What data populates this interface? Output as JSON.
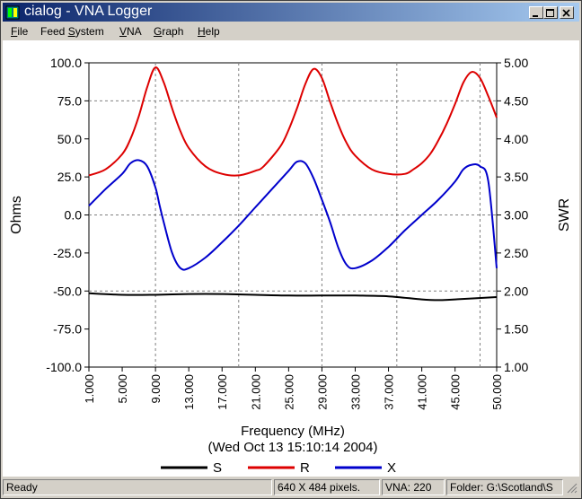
{
  "window": {
    "title": "cialog - VNA Logger",
    "buttons": [
      "minimize",
      "maximize",
      "close"
    ]
  },
  "menu": {
    "items": [
      {
        "label": "File",
        "hotkey": "F"
      },
      {
        "label": "Feed System",
        "hotkey": "S"
      },
      {
        "label": "VNA",
        "hotkey": "V"
      },
      {
        "label": "Graph",
        "hotkey": "G"
      },
      {
        "label": "Help",
        "hotkey": "H"
      }
    ]
  },
  "chart_data": {
    "type": "line",
    "xlabel": "Frequency (MHz)",
    "subtitle": "(Wed Oct 13 15:10:14 2004)",
    "ylabel_left": "Ohms",
    "ylabel_right": "SWR",
    "xlim": [
      1,
      50
    ],
    "ylim_left": [
      -100,
      100
    ],
    "ylim_right": [
      1,
      5
    ],
    "x_ticks": [
      "1.000",
      "5.000",
      "9.000",
      "13.000",
      "17.000",
      "21.000",
      "25.000",
      "29.000",
      "33.000",
      "37.000",
      "41.000",
      "45.000",
      "50.000"
    ],
    "y_ticks_left": [
      "100.0",
      "75.0",
      "50.0",
      "25.0",
      "0.0",
      "-25.0",
      "-50.0",
      "-75.0",
      "-100.0"
    ],
    "y_ticks_right": [
      "5.00",
      "4.50",
      "4.00",
      "3.50",
      "3.00",
      "2.50",
      "2.00",
      "1.50",
      "1.00"
    ],
    "grid": true,
    "legend_placement": "bottom",
    "series": [
      {
        "name": "S",
        "axis": "right",
        "color": "#000000",
        "x": [
          1,
          5,
          9,
          13,
          17,
          21,
          25,
          29,
          33,
          37,
          41,
          43,
          45,
          50
        ],
        "y": [
          1.97,
          1.95,
          1.95,
          1.96,
          1.96,
          1.95,
          1.94,
          1.94,
          1.94,
          1.93,
          1.89,
          1.88,
          1.89,
          1.92
        ]
      },
      {
        "name": "R",
        "axis": "left",
        "color": "#dd0000",
        "x": [
          1,
          3,
          5,
          6,
          7,
          8,
          9,
          10,
          11,
          12,
          13,
          15,
          17,
          19,
          21,
          22,
          24,
          25,
          26,
          27,
          28,
          29,
          30,
          31,
          32,
          33,
          35,
          37,
          39,
          40,
          41,
          42,
          43,
          44,
          45,
          46,
          47,
          48,
          49,
          50
        ],
        "y": [
          26,
          30,
          40,
          50,
          65,
          84,
          97,
          87,
          70,
          55,
          44,
          32,
          27,
          26,
          29,
          32,
          45,
          56,
          70,
          86,
          96,
          90,
          74,
          59,
          47,
          39,
          30,
          27,
          27,
          30,
          34,
          40,
          49,
          60,
          73,
          87,
          94,
          90,
          78,
          64
        ]
      },
      {
        "name": "X",
        "axis": "left",
        "color": "#0000cc",
        "x": [
          1,
          3,
          5,
          6,
          7,
          8,
          9,
          9.5,
          10,
          11,
          12,
          13,
          15,
          17,
          19,
          21,
          23,
          25,
          26,
          27,
          28,
          29,
          30,
          31,
          32,
          33,
          35,
          37,
          39,
          41,
          43,
          45,
          46,
          47,
          48,
          49,
          50
        ],
        "y": [
          6,
          17,
          27,
          34,
          36,
          32,
          18,
          6,
          -5,
          -25,
          -35,
          -35,
          -28,
          -18,
          -7,
          5,
          17,
          29,
          35,
          34,
          24,
          10,
          -5,
          -22,
          -33,
          -35,
          -30,
          -21,
          -10,
          0,
          10,
          22,
          30,
          33,
          32,
          22,
          -35
        ]
      }
    ]
  },
  "status": {
    "ready": "Ready",
    "size": "640 X 484 pixels.",
    "vna": "VNA: 220",
    "folder": "Folder: G:\\Scotland\\S"
  }
}
